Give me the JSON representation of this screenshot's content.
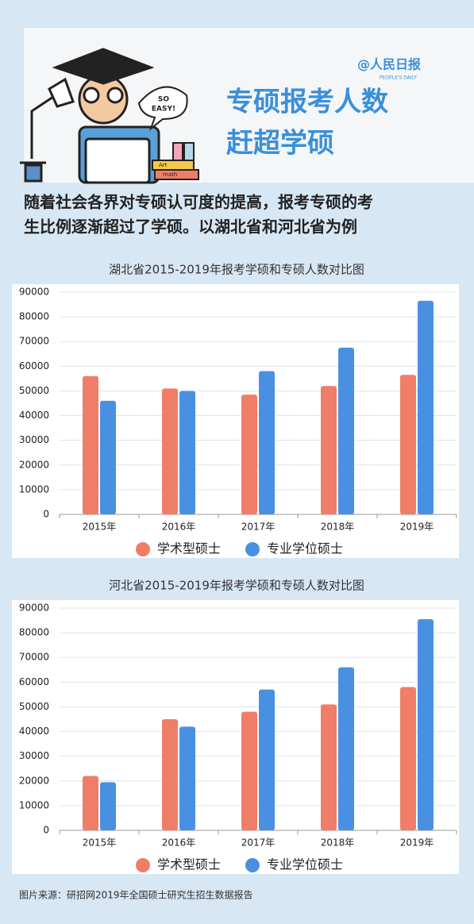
{
  "header": {
    "logo": {
      "main": "@人民日报",
      "sub": "PEOPLE'S DAILY"
    },
    "title": [
      "专硕报考人数",
      "赶超学硕"
    ],
    "illustration": {
      "bubble": [
        "SO",
        "EASY!"
      ],
      "books": [
        "Art",
        "math"
      ]
    }
  },
  "intro": [
    "随着社会各界对专硕认可度的提高，报考专硕的考",
    "生比例逐渐超过了学硕。以湖北省和河北省为例"
  ],
  "chart_data": [
    {
      "type": "bar",
      "title": "湖北省2015-2019年报考学硕和专硕人数对比图",
      "categories": [
        "2015年",
        "2016年",
        "2017年",
        "2018年",
        "2019年"
      ],
      "series": [
        {
          "name": "学术型硕士",
          "color": "#f07d68",
          "values": [
            56000,
            51000,
            48500,
            52000,
            56500
          ]
        },
        {
          "name": "专业学位硕士",
          "color": "#4a90e2",
          "values": [
            46000,
            50000,
            58000,
            67500,
            86500
          ]
        }
      ],
      "ylim": [
        0,
        90000
      ],
      "yticks": [
        0,
        10000,
        20000,
        30000,
        40000,
        50000,
        60000,
        70000,
        80000,
        90000
      ],
      "grid": true
    },
    {
      "type": "bar",
      "title": "河北省2015-2019年报考学硕和专硕人数对比图",
      "categories": [
        "2015年",
        "2016年",
        "2017年",
        "2018年",
        "2019年"
      ],
      "series": [
        {
          "name": "学术型硕士",
          "color": "#f07d68",
          "values": [
            22000,
            45000,
            48000,
            51000,
            58000
          ]
        },
        {
          "name": "专业学位硕士",
          "color": "#4a90e2",
          "values": [
            19500,
            42000,
            57000,
            66000,
            85500
          ]
        }
      ],
      "ylim": [
        0,
        90000
      ],
      "yticks": [
        0,
        10000,
        20000,
        30000,
        40000,
        50000,
        60000,
        70000,
        80000,
        90000
      ],
      "grid": true
    }
  ],
  "source": "图片来源：研招网2019年全国硕士研究生招生数据报告"
}
